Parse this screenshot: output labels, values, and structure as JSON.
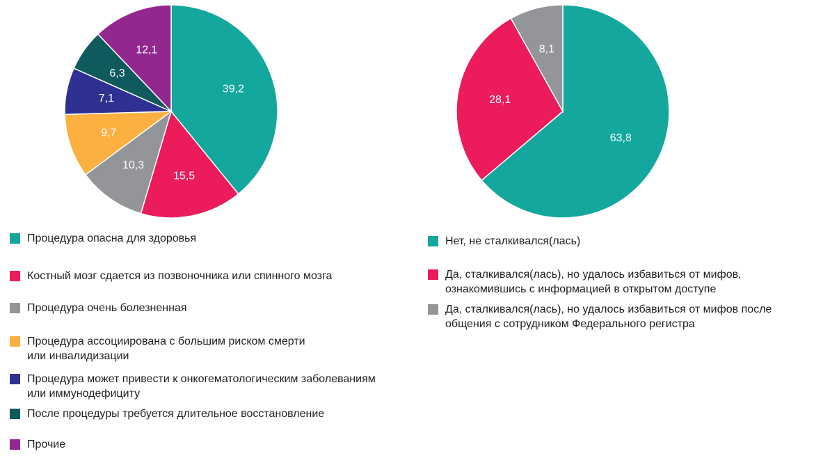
{
  "chart_data": [
    {
      "type": "pie",
      "slices": [
        {
          "label": "Процедура опасна для здоровья",
          "value": 39.2,
          "value_label": "39,2",
          "color": "#14a79d"
        },
        {
          "label": "Костный мозг сдается из позвоночника или спинного мозга",
          "value": 15.5,
          "value_label": "15,5",
          "color": "#ec1b5b"
        },
        {
          "label": "Процедура очень болезненная",
          "value": 10.3,
          "value_label": "10,3",
          "color": "#939598"
        },
        {
          "label": "Процедура ассоциирована с большим риском смерти или инвалидизации",
          "value": 9.7,
          "value_label": "9,7",
          "color": "#fbb040"
        },
        {
          "label": "Процедура может привести к онкогематологическим заболеваниям или иммунодефициту",
          "value": 7.1,
          "value_label": "7,1",
          "color": "#2e3192"
        },
        {
          "label": "После процедуры требуется длительное восстановление",
          "value": 6.3,
          "value_label": "6,3",
          "color": "#0e5a5c"
        },
        {
          "label": "Прочие",
          "value": 12.1,
          "value_label": "12,1",
          "color": "#92278f"
        }
      ],
      "legend": [
        [
          "Процедура опасна для здоровья"
        ],
        [
          "Костный мозг сдается из позвоночника или спинного мозга"
        ],
        [
          "Процедура очень болезненная"
        ],
        [
          "Процедура ассоциирована с большим риском смерти",
          "или инвалидизации"
        ],
        [
          "Процедура может привести к онкогематологическим заболеваниям",
          "или иммунодефициту"
        ],
        [
          "После процедуры требуется длительное восстановление"
        ],
        [
          "Прочие"
        ]
      ],
      "legend_placement": "bottom"
    },
    {
      "type": "pie",
      "slices": [
        {
          "label": "Нет, не сталкивался(лась)",
          "value": 63.8,
          "value_label": "63,8",
          "color": "#14a79d"
        },
        {
          "label": "Да, сталкивался(лась), но удалось избавиться от мифов, ознакомившись с информацией в открытом доступе",
          "value": 28.1,
          "value_label": "28,1",
          "color": "#ec1b5b"
        },
        {
          "label": "Да, сталкивался(лась), но удалось избавиться от мифов после общения с сотрудником Федерального регистра",
          "value": 8.1,
          "value_label": "8,1",
          "color": "#939598"
        }
      ],
      "legend": [
        [
          "Нет, не сталкивался(лась)"
        ],
        [
          "Да, сталкивался(лась), но удалось избавиться от мифов,",
          "ознакомившись с информацией в открытом доступе"
        ],
        [
          "Да, сталкивался(лась), но удалось избавиться от мифов после",
          "общения с сотрудником Федерального регистра"
        ]
      ],
      "legend_placement": "bottom"
    }
  ]
}
